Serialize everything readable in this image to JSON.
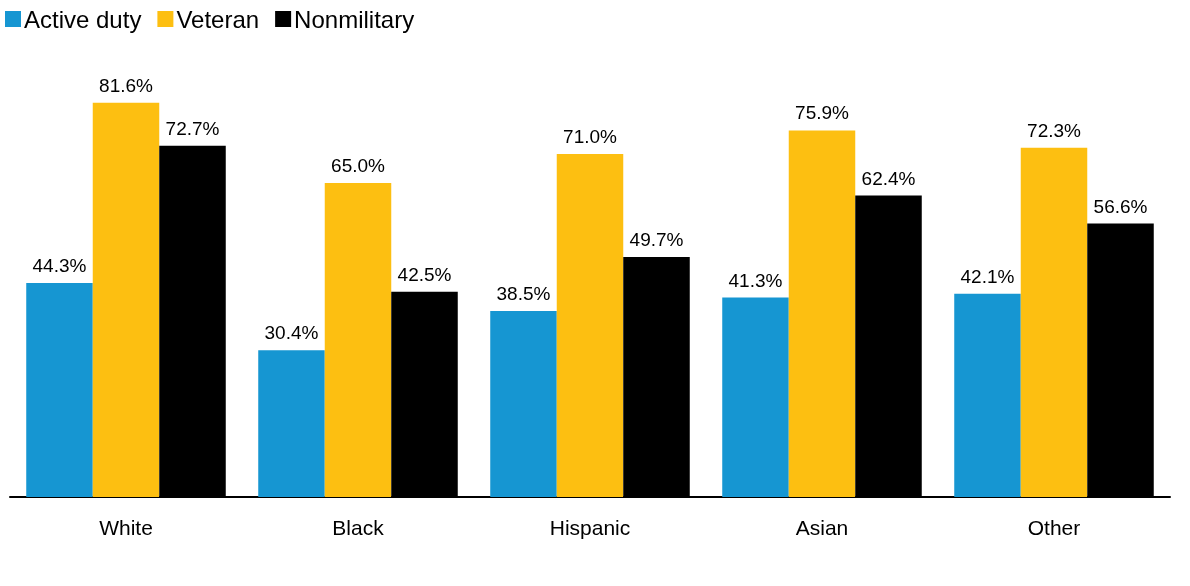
{
  "chart_data": {
    "type": "bar",
    "categories": [
      "White",
      "Black",
      "Hispanic",
      "Asian",
      "Other"
    ],
    "series": [
      {
        "name": "Active duty",
        "color": "#1696d2",
        "values": [
          44.3,
          30.4,
          38.5,
          41.3,
          42.1
        ],
        "value_labels": [
          "44.3%",
          "30.4%",
          "38.5%",
          "41.3%",
          "42.1%"
        ]
      },
      {
        "name": "Veteran",
        "color": "#fdbf11",
        "values": [
          81.6,
          65.0,
          71.0,
          75.9,
          72.3
        ],
        "value_labels": [
          "81.6%",
          "65.0%",
          "71.0%",
          "75.9%",
          "72.3%"
        ]
      },
      {
        "name": "Nonmilitary",
        "color": "#000000",
        "values": [
          72.7,
          42.5,
          49.7,
          62.4,
          56.6
        ],
        "value_labels": [
          "72.7%",
          "42.5%",
          "49.7%",
          "62.4%",
          "56.6%"
        ]
      }
    ],
    "grid": false,
    "legend": "top left"
  }
}
